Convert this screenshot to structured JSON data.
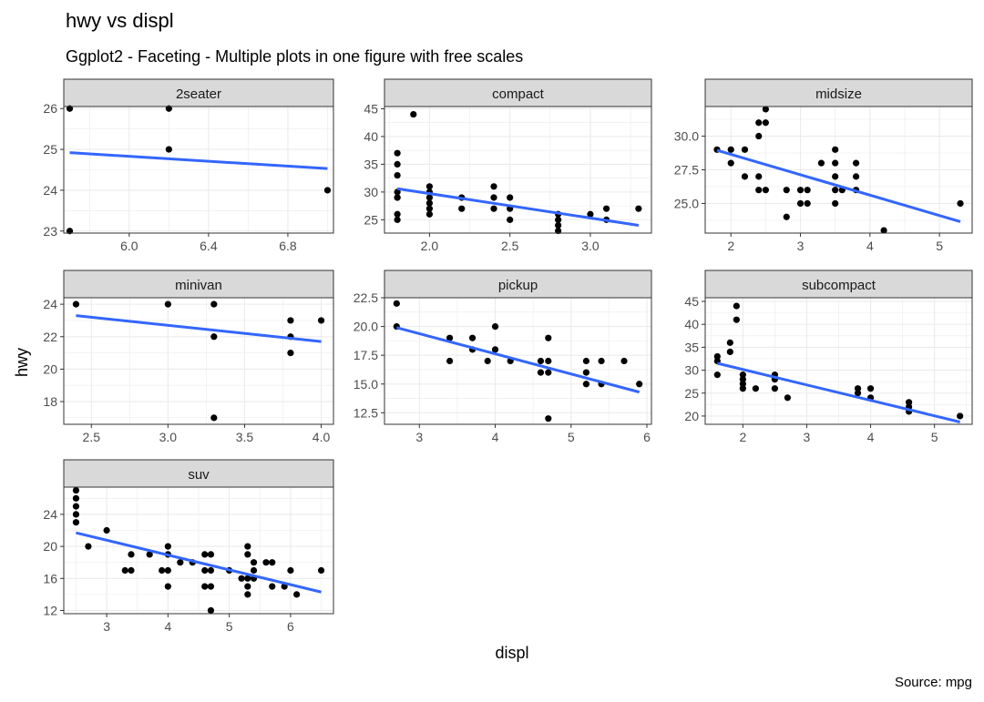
{
  "chart_data": {
    "type": "scatter",
    "title": "hwy vs displ",
    "subtitle": "Ggplot2 - Faceting - Multiple plots in one figure with free scales",
    "xlabel": "displ",
    "ylabel": "hwy",
    "caption": "Source: mpg",
    "colors": {
      "point": "#000000",
      "trend": "#3366FF",
      "strip": "#D9D9D9",
      "grid": "#EBEBEB",
      "border": "#333333"
    },
    "panels": [
      {
        "label": "2seater",
        "xlim": [
          5.67,
          7.03
        ],
        "ylim": [
          22.95,
          26.05
        ],
        "xticks": [
          6.0,
          6.4,
          6.8
        ],
        "xtick_labels": [
          "6.0",
          "6.4",
          "6.8"
        ],
        "yticks": [
          23,
          24,
          25,
          26
        ],
        "ytick_labels": [
          "23",
          "24",
          "25",
          "26"
        ],
        "points": [
          [
            5.7,
            26
          ],
          [
            5.7,
            23
          ],
          [
            6.2,
            26
          ],
          [
            6.2,
            25
          ],
          [
            7.0,
            24
          ]
        ],
        "trend": [
          [
            5.7,
            24.92
          ],
          [
            7.0,
            24.53
          ]
        ]
      },
      {
        "label": "compact",
        "xlim": [
          1.72,
          3.38
        ],
        "ylim": [
          22.6,
          45.4
        ],
        "xticks": [
          2.0,
          2.5,
          3.0
        ],
        "xtick_labels": [
          "2.0",
          "2.5",
          "3.0"
        ],
        "yticks": [
          25,
          30,
          35,
          40,
          45
        ],
        "ytick_labels": [
          "25",
          "30",
          "35",
          "40",
          "45"
        ],
        "points": [
          [
            1.8,
            29
          ],
          [
            1.8,
            29
          ],
          [
            1.8,
            26
          ],
          [
            1.8,
            25
          ],
          [
            1.8,
            33
          ],
          [
            1.8,
            35
          ],
          [
            1.8,
            37
          ],
          [
            1.8,
            30
          ],
          [
            1.9,
            44
          ],
          [
            2.0,
            31
          ],
          [
            2.0,
            30
          ],
          [
            2.0,
            28
          ],
          [
            2.0,
            29
          ],
          [
            2.0,
            27
          ],
          [
            2.0,
            26
          ],
          [
            2.2,
            29
          ],
          [
            2.2,
            27
          ],
          [
            2.4,
            31
          ],
          [
            2.4,
            29
          ],
          [
            2.4,
            27
          ],
          [
            2.5,
            29
          ],
          [
            2.5,
            27
          ],
          [
            2.5,
            25
          ],
          [
            2.8,
            26
          ],
          [
            2.8,
            25
          ],
          [
            2.8,
            24
          ],
          [
            2.8,
            23
          ],
          [
            3.0,
            26
          ],
          [
            3.1,
            27
          ],
          [
            3.1,
            25
          ],
          [
            3.3,
            27
          ]
        ],
        "trend": [
          [
            1.8,
            30.6
          ],
          [
            3.3,
            24.0
          ]
        ]
      },
      {
        "label": "midsize",
        "xlim": [
          1.63,
          5.47
        ],
        "ylim": [
          22.8,
          32.2
        ],
        "xticks": [
          2,
          3,
          4,
          5
        ],
        "xtick_labels": [
          "2",
          "3",
          "4",
          "5"
        ],
        "yticks": [
          25.0,
          27.5,
          30.0
        ],
        "ytick_labels": [
          "25.0",
          "27.5",
          "30.0"
        ],
        "points": [
          [
            1.8,
            29
          ],
          [
            2.0,
            29
          ],
          [
            2.0,
            28
          ],
          [
            2.2,
            29
          ],
          [
            2.2,
            27
          ],
          [
            2.4,
            30
          ],
          [
            2.4,
            31
          ],
          [
            2.4,
            27
          ],
          [
            2.4,
            26
          ],
          [
            2.5,
            32
          ],
          [
            2.5,
            31
          ],
          [
            2.5,
            26
          ],
          [
            2.8,
            26
          ],
          [
            2.8,
            24
          ],
          [
            3.0,
            26
          ],
          [
            3.0,
            25
          ],
          [
            3.1,
            26
          ],
          [
            3.1,
            25
          ],
          [
            3.3,
            28
          ],
          [
            3.5,
            28
          ],
          [
            3.5,
            29
          ],
          [
            3.5,
            26
          ],
          [
            3.5,
            25
          ],
          [
            3.5,
            27
          ],
          [
            3.6,
            26
          ],
          [
            3.8,
            28
          ],
          [
            3.8,
            27
          ],
          [
            3.8,
            26
          ],
          [
            4.2,
            23
          ],
          [
            5.3,
            25
          ]
        ],
        "trend": [
          [
            1.8,
            28.95
          ],
          [
            5.3,
            23.65
          ]
        ]
      },
      {
        "label": "minivan",
        "xlim": [
          2.32,
          4.08
        ],
        "ylim": [
          16.6,
          24.4
        ],
        "xticks": [
          2.5,
          3.0,
          3.5,
          4.0
        ],
        "xtick_labels": [
          "2.5",
          "3.0",
          "3.5",
          "4.0"
        ],
        "yticks": [
          18,
          20,
          22,
          24
        ],
        "ytick_labels": [
          "18",
          "20",
          "22",
          "24"
        ],
        "points": [
          [
            2.4,
            24
          ],
          [
            3.0,
            24
          ],
          [
            3.3,
            24
          ],
          [
            3.3,
            22
          ],
          [
            3.3,
            17
          ],
          [
            3.8,
            23
          ],
          [
            3.8,
            22
          ],
          [
            3.8,
            21
          ],
          [
            4.0,
            23
          ]
        ],
        "trend": [
          [
            2.4,
            23.3
          ],
          [
            4.0,
            21.7
          ]
        ]
      },
      {
        "label": "pickup",
        "xlim": [
          2.54,
          6.06
        ],
        "ylim": [
          11.5,
          22.5
        ],
        "xticks": [
          3,
          4,
          5,
          6
        ],
        "xtick_labels": [
          "3",
          "4",
          "5",
          "6"
        ],
        "yticks": [
          12.5,
          15.0,
          17.5,
          20.0,
          22.5
        ],
        "ytick_labels": [
          "12.5",
          "15.0",
          "17.5",
          "20.0",
          "22.5"
        ],
        "points": [
          [
            2.7,
            22
          ],
          [
            2.7,
            20
          ],
          [
            3.4,
            19
          ],
          [
            3.4,
            17
          ],
          [
            3.7,
            19
          ],
          [
            3.7,
            18
          ],
          [
            3.9,
            17
          ],
          [
            4.0,
            20
          ],
          [
            4.0,
            18
          ],
          [
            4.2,
            17
          ],
          [
            4.6,
            17
          ],
          [
            4.6,
            16
          ],
          [
            4.7,
            19
          ],
          [
            4.7,
            17
          ],
          [
            4.7,
            16
          ],
          [
            4.7,
            12
          ],
          [
            5.2,
            17
          ],
          [
            5.2,
            16
          ],
          [
            5.2,
            15
          ],
          [
            5.4,
            17
          ],
          [
            5.4,
            15
          ],
          [
            5.7,
            17
          ],
          [
            5.9,
            15
          ]
        ],
        "trend": [
          [
            2.7,
            19.9
          ],
          [
            5.9,
            14.3
          ]
        ]
      },
      {
        "label": "subcompact",
        "xlim": [
          1.41,
          5.59
        ],
        "ylim": [
          18.2,
          45.8
        ],
        "xticks": [
          2,
          3,
          4,
          5
        ],
        "xtick_labels": [
          "2",
          "3",
          "4",
          "5"
        ],
        "yticks": [
          20,
          25,
          30,
          35,
          40,
          45
        ],
        "ytick_labels": [
          "20",
          "25",
          "30",
          "35",
          "40",
          "45"
        ],
        "points": [
          [
            1.6,
            33
          ],
          [
            1.6,
            32
          ],
          [
            1.6,
            29
          ],
          [
            1.8,
            36
          ],
          [
            1.8,
            34
          ],
          [
            1.9,
            44
          ],
          [
            1.9,
            41
          ],
          [
            2.0,
            29
          ],
          [
            2.0,
            28
          ],
          [
            2.0,
            27
          ],
          [
            2.0,
            26
          ],
          [
            2.2,
            26
          ],
          [
            2.5,
            29
          ],
          [
            2.5,
            28
          ],
          [
            2.5,
            26
          ],
          [
            2.7,
            24
          ],
          [
            3.8,
            26
          ],
          [
            3.8,
            25
          ],
          [
            4.0,
            26
          ],
          [
            4.0,
            24
          ],
          [
            4.6,
            23
          ],
          [
            4.6,
            22
          ],
          [
            4.6,
            21
          ],
          [
            5.4,
            20
          ]
        ],
        "trend": [
          [
            1.6,
            31.5
          ],
          [
            5.4,
            18.7
          ]
        ]
      },
      {
        "label": "suv",
        "xlim": [
          2.3,
          6.7
        ],
        "ylim": [
          11.6,
          27.4
        ],
        "xticks": [
          3,
          4,
          5,
          6
        ],
        "xtick_labels": [
          "3",
          "4",
          "5",
          "6"
        ],
        "yticks": [
          12,
          16,
          20,
          24
        ],
        "ytick_labels": [
          "12",
          "16",
          "20",
          "24"
        ],
        "points": [
          [
            2.5,
            27
          ],
          [
            2.5,
            26
          ],
          [
            2.5,
            25
          ],
          [
            2.5,
            24
          ],
          [
            2.5,
            23
          ],
          [
            2.7,
            20
          ],
          [
            3.0,
            22
          ],
          [
            3.3,
            17
          ],
          [
            3.4,
            19
          ],
          [
            3.4,
            17
          ],
          [
            3.7,
            19
          ],
          [
            3.9,
            17
          ],
          [
            4.0,
            20
          ],
          [
            4.0,
            19
          ],
          [
            4.0,
            17
          ],
          [
            4.0,
            15
          ],
          [
            4.2,
            18
          ],
          [
            4.4,
            18
          ],
          [
            4.6,
            19
          ],
          [
            4.6,
            17
          ],
          [
            4.6,
            15
          ],
          [
            4.7,
            19
          ],
          [
            4.7,
            17
          ],
          [
            4.7,
            15
          ],
          [
            4.7,
            12
          ],
          [
            5.0,
            17
          ],
          [
            5.2,
            16
          ],
          [
            5.3,
            20
          ],
          [
            5.3,
            19
          ],
          [
            5.3,
            16
          ],
          [
            5.3,
            15
          ],
          [
            5.3,
            14
          ],
          [
            5.4,
            18
          ],
          [
            5.4,
            17
          ],
          [
            5.4,
            16
          ],
          [
            5.6,
            18
          ],
          [
            5.7,
            18
          ],
          [
            5.7,
            15
          ],
          [
            5.9,
            15
          ],
          [
            6.0,
            17
          ],
          [
            6.1,
            14
          ],
          [
            6.5,
            17
          ]
        ],
        "trend": [
          [
            2.5,
            21.7
          ],
          [
            6.5,
            14.3
          ]
        ]
      }
    ]
  }
}
